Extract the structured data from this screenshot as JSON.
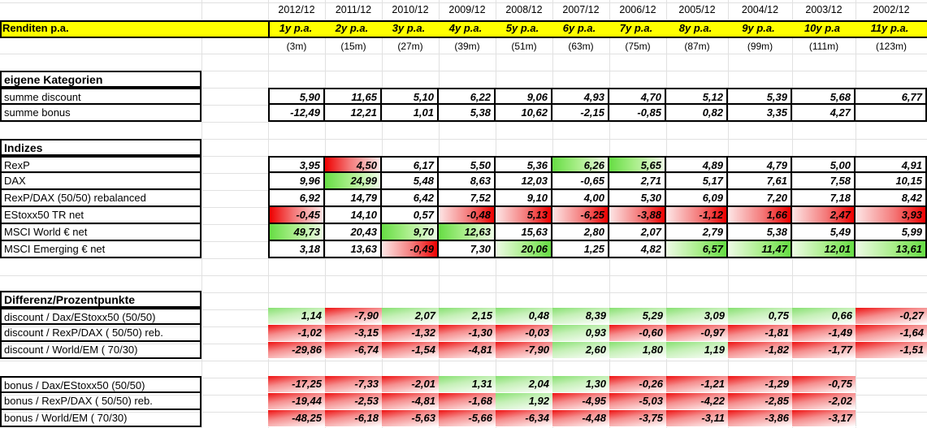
{
  "dates": [
    "2012/12",
    "2011/12",
    "2010/12",
    "2009/12",
    "2008/12",
    "2007/12",
    "2006/12",
    "2005/12",
    "2004/12",
    "2003/12",
    "2002/12"
  ],
  "title": "Renditen p.a.",
  "periods": [
    "1y p.a.",
    "2y p.a.",
    "3y p.a.",
    "4y p.a.",
    "5y p.a.",
    "6y p.a.",
    "7y p.a.",
    "8y p.a.",
    "9y p.a.",
    "10y p.a",
    "11y p.a."
  ],
  "months": [
    "(3m)",
    "(15m)",
    "(27m)",
    "(39m)",
    "(51m)",
    "(63m)",
    "(75m)",
    "(87m)",
    "(99m)",
    "(111m)",
    "(123m)"
  ],
  "sections": {
    "eigene": "eigene Kategorien",
    "indizes": "Indizes",
    "differenz": "Differenz/Prozentpunkte"
  },
  "rows": [
    {
      "label": "summe discount",
      "values": [
        "5,90",
        "11,65",
        "5,10",
        "6,22",
        "9,06",
        "4,93",
        "4,70",
        "5,12",
        "5,39",
        "5,68",
        "6,77"
      ]
    },
    {
      "label": "summe bonus",
      "values": [
        "-12,49",
        "12,21",
        "1,01",
        "5,38",
        "10,62",
        "-2,15",
        "-0,85",
        "0,82",
        "3,35",
        "4,27",
        ""
      ]
    },
    {
      "label": "RexP",
      "values": [
        "3,95",
        "4,50",
        "6,17",
        "5,50",
        "5,36",
        "6,26",
        "5,65",
        "4,89",
        "4,79",
        "5,00",
        "4,91"
      ]
    },
    {
      "label": "DAX",
      "values": [
        "9,96",
        "24,99",
        "5,48",
        "8,63",
        "12,03",
        "-0,65",
        "2,71",
        "5,17",
        "7,61",
        "7,58",
        "10,15"
      ]
    },
    {
      "label": "RexP/DAX (50/50) rebalanced",
      "values": [
        "6,92",
        "14,79",
        "6,42",
        "7,52",
        "9,10",
        "4,00",
        "5,30",
        "6,09",
        "7,20",
        "7,18",
        "8,42"
      ]
    },
    {
      "label": "EStoxx50 TR net",
      "values": [
        "-0,45",
        "14,10",
        "0,57",
        "-0,48",
        "5,13",
        "-6,25",
        "-3,88",
        "-1,12",
        "1,66",
        "2,47",
        "3,93"
      ]
    },
    {
      "label": "MSCI World € net",
      "values": [
        "49,73",
        "20,43",
        "9,70",
        "12,63",
        "15,63",
        "2,80",
        "2,07",
        "2,79",
        "5,38",
        "5,49",
        "5,99"
      ]
    },
    {
      "label": "MSCI Emerging € net",
      "values": [
        "3,18",
        "13,63",
        "-0,49",
        "7,30",
        "20,06",
        "1,25",
        "4,82",
        "6,57",
        "11,47",
        "12,01",
        "13,61"
      ]
    },
    {
      "label": "discount / Dax/EStoxx50 (50/50)",
      "values": [
        "1,14",
        "-7,90",
        "2,07",
        "2,15",
        "0,48",
        "8,39",
        "5,29",
        "3,09",
        "0,75",
        "0,66",
        "-0,27"
      ]
    },
    {
      "label": "discount / RexP/DAX ( 50/50) reb.",
      "values": [
        "-1,02",
        "-3,15",
        "-1,32",
        "-1,30",
        "-0,03",
        "0,93",
        "-0,60",
        "-0,97",
        "-1,81",
        "-1,49",
        "-1,64"
      ]
    },
    {
      "label": "discount / World/EM ( 70/30)",
      "values": [
        "-29,86",
        "-6,74",
        "-1,54",
        "-4,81",
        "-7,90",
        "2,60",
        "1,80",
        "1,19",
        "-1,82",
        "-1,77",
        "-1,51"
      ]
    },
    {
      "label": "bonus / Dax/EStoxx50 (50/50)",
      "values": [
        "-17,25",
        "-7,33",
        "-2,01",
        "1,31",
        "2,04",
        "1,30",
        "-0,26",
        "-1,21",
        "-1,29",
        "-0,75",
        ""
      ]
    },
    {
      "label": "bonus / RexP/DAX ( 50/50) reb.",
      "values": [
        "-19,44",
        "-2,53",
        "-4,81",
        "-1,68",
        "1,92",
        "-4,95",
        "-5,03",
        "-4,22",
        "-2,85",
        "-2,02",
        ""
      ]
    },
    {
      "label": "bonus / World/EM ( 70/30)",
      "values": [
        "-48,25",
        "-6,18",
        "-5,63",
        "-5,66",
        "-6,34",
        "-4,48",
        "-3,75",
        "-3,11",
        "-3,86",
        "-3,17",
        ""
      ]
    }
  ],
  "colors": {
    "header_fill": "#ffff00",
    "green": "#66dd44",
    "red": "#ee0000"
  }
}
